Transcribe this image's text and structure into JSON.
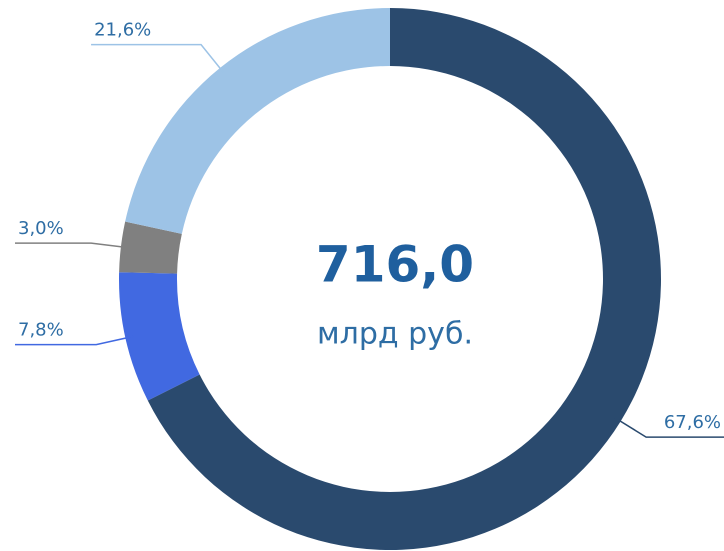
{
  "chart_data": {
    "type": "donut",
    "values": [
      67.6,
      7.8,
      3.0,
      21.6
    ],
    "value_labels": [
      "67,6%",
      "7,8%",
      "3,0%",
      "21,6%"
    ],
    "colors": [
      "#2a4a6e",
      "#4169e1",
      "#808080",
      "#9dc3e6"
    ],
    "center_title": "716,0",
    "center_subtitle": "млрд руб."
  }
}
